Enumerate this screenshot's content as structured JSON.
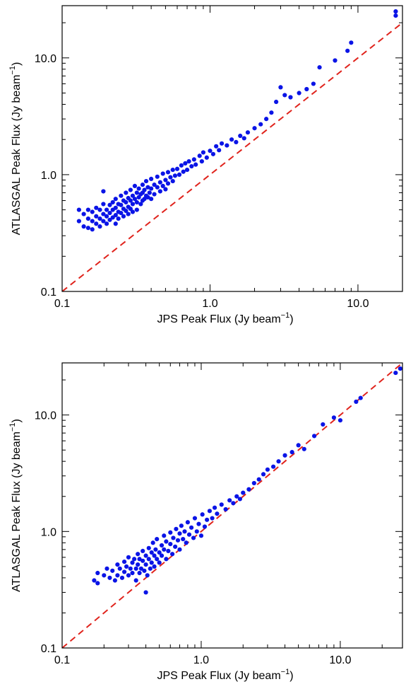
{
  "chart_data": [
    {
      "type": "scatter",
      "panel": "top",
      "xlabel": "JPS Peak Flux (Jy beam",
      "ylabel": "ATLASGAL Peak Flux (Jy beam",
      "unit_exponent": "−1",
      "label_close": ")",
      "xscale": "log",
      "yscale": "log",
      "xlim": [
        0.1,
        20
      ],
      "ylim": [
        0.1,
        28
      ],
      "xticks": [
        "0.1",
        "1.0",
        "10.0"
      ],
      "yticks": [
        "0.1",
        "1.0",
        "10.0"
      ],
      "reference_line": "y = x",
      "colors": {
        "points": "#0a14e6",
        "reference": "#e0231c"
      },
      "points": [
        [
          0.13,
          0.5
        ],
        [
          0.13,
          0.4
        ],
        [
          0.14,
          0.46
        ],
        [
          0.14,
          0.36
        ],
        [
          0.15,
          0.5
        ],
        [
          0.15,
          0.42
        ],
        [
          0.15,
          0.35
        ],
        [
          0.16,
          0.48
        ],
        [
          0.16,
          0.4
        ],
        [
          0.16,
          0.34
        ],
        [
          0.17,
          0.52
        ],
        [
          0.17,
          0.44
        ],
        [
          0.17,
          0.38
        ],
        [
          0.18,
          0.5
        ],
        [
          0.18,
          0.42
        ],
        [
          0.18,
          0.36
        ],
        [
          0.19,
          0.56
        ],
        [
          0.19,
          0.46
        ],
        [
          0.19,
          0.4
        ],
        [
          0.19,
          0.72
        ],
        [
          0.2,
          0.5
        ],
        [
          0.2,
          0.44
        ],
        [
          0.2,
          0.38
        ],
        [
          0.21,
          0.55
        ],
        [
          0.21,
          0.47
        ],
        [
          0.21,
          0.41
        ],
        [
          0.22,
          0.58
        ],
        [
          0.22,
          0.5
        ],
        [
          0.22,
          0.43
        ],
        [
          0.23,
          0.62
        ],
        [
          0.23,
          0.52
        ],
        [
          0.23,
          0.45
        ],
        [
          0.23,
          0.38
        ],
        [
          0.24,
          0.56
        ],
        [
          0.24,
          0.48
        ],
        [
          0.24,
          0.42
        ],
        [
          0.25,
          0.66
        ],
        [
          0.25,
          0.55
        ],
        [
          0.25,
          0.47
        ],
        [
          0.26,
          0.6
        ],
        [
          0.26,
          0.51
        ],
        [
          0.26,
          0.44
        ],
        [
          0.27,
          0.7
        ],
        [
          0.27,
          0.58
        ],
        [
          0.27,
          0.49
        ],
        [
          0.28,
          0.63
        ],
        [
          0.28,
          0.53
        ],
        [
          0.28,
          0.46
        ],
        [
          0.29,
          0.74
        ],
        [
          0.29,
          0.6
        ],
        [
          0.29,
          0.51
        ],
        [
          0.3,
          0.66
        ],
        [
          0.3,
          0.56
        ],
        [
          0.3,
          0.48
        ],
        [
          0.31,
          0.8
        ],
        [
          0.31,
          0.62
        ],
        [
          0.32,
          0.7
        ],
        [
          0.32,
          0.58
        ],
        [
          0.32,
          0.5
        ],
        [
          0.33,
          0.76
        ],
        [
          0.33,
          0.64
        ],
        [
          0.34,
          0.68
        ],
        [
          0.34,
          0.56
        ],
        [
          0.35,
          0.82
        ],
        [
          0.35,
          0.7
        ],
        [
          0.35,
          0.6
        ],
        [
          0.36,
          0.74
        ],
        [
          0.36,
          0.62
        ],
        [
          0.37,
          0.88
        ],
        [
          0.37,
          0.66
        ],
        [
          0.38,
          0.78
        ],
        [
          0.38,
          0.64
        ],
        [
          0.39,
          0.7
        ],
        [
          0.4,
          0.92
        ],
        [
          0.4,
          0.76
        ],
        [
          0.4,
          0.62
        ],
        [
          0.42,
          0.82
        ],
        [
          0.42,
          0.68
        ],
        [
          0.44,
          0.96
        ],
        [
          0.44,
          0.78
        ],
        [
          0.46,
          0.86
        ],
        [
          0.46,
          0.72
        ],
        [
          0.48,
          1.02
        ],
        [
          0.48,
          0.8
        ],
        [
          0.5,
          0.9
        ],
        [
          0.5,
          0.75
        ],
        [
          0.52,
          1.05
        ],
        [
          0.52,
          0.84
        ],
        [
          0.54,
          0.95
        ],
        [
          0.56,
          1.1
        ],
        [
          0.56,
          0.88
        ],
        [
          0.58,
          0.98
        ],
        [
          0.6,
          1.12
        ],
        [
          0.62,
          1.0
        ],
        [
          0.64,
          1.2
        ],
        [
          0.66,
          1.06
        ],
        [
          0.68,
          1.25
        ],
        [
          0.7,
          1.1
        ],
        [
          0.72,
          1.3
        ],
        [
          0.75,
          1.18
        ],
        [
          0.78,
          1.35
        ],
        [
          0.8,
          1.22
        ],
        [
          0.85,
          1.45
        ],
        [
          0.88,
          1.3
        ],
        [
          0.9,
          1.55
        ],
        [
          0.95,
          1.4
        ],
        [
          1.0,
          1.6
        ],
        [
          1.05,
          1.5
        ],
        [
          1.1,
          1.75
        ],
        [
          1.15,
          1.62
        ],
        [
          1.2,
          1.85
        ],
        [
          1.3,
          1.78
        ],
        [
          1.4,
          2.0
        ],
        [
          1.5,
          1.9
        ],
        [
          1.6,
          2.15
        ],
        [
          1.7,
          2.05
        ],
        [
          1.8,
          2.3
        ],
        [
          2.0,
          2.5
        ],
        [
          2.2,
          2.7
        ],
        [
          2.4,
          3.0
        ],
        [
          2.6,
          3.4
        ],
        [
          2.8,
          4.2
        ],
        [
          3.0,
          5.6
        ],
        [
          3.2,
          4.8
        ],
        [
          3.5,
          4.6
        ],
        [
          4.0,
          5.0
        ],
        [
          4.5,
          5.4
        ],
        [
          5.0,
          6.0
        ],
        [
          5.5,
          8.3
        ],
        [
          7.0,
          9.5
        ],
        [
          8.5,
          11.5
        ],
        [
          9.0,
          13.5
        ],
        [
          18.0,
          23.0
        ],
        [
          18.0,
          25.0
        ]
      ]
    },
    {
      "type": "scatter",
      "panel": "bottom",
      "xlabel": "JPS Peak Flux (Jy beam",
      "ylabel": "ATLASGAL Peak Flux (Jy beam",
      "unit_exponent": "−1",
      "label_close": ")",
      "xscale": "log",
      "yscale": "log",
      "xlim": [
        0.1,
        28
      ],
      "ylim": [
        0.1,
        28
      ],
      "xticks": [
        "0.1",
        "1.0",
        "10.0"
      ],
      "yticks": [
        "0.1",
        "1.0",
        "10.0"
      ],
      "reference_line": "y = x",
      "colors": {
        "points": "#0a14e6",
        "reference": "#e0231c"
      },
      "points": [
        [
          0.17,
          0.38
        ],
        [
          0.18,
          0.44
        ],
        [
          0.18,
          0.36
        ],
        [
          0.2,
          0.42
        ],
        [
          0.21,
          0.48
        ],
        [
          0.22,
          0.4
        ],
        [
          0.23,
          0.46
        ],
        [
          0.24,
          0.38
        ],
        [
          0.25,
          0.52
        ],
        [
          0.25,
          0.42
        ],
        [
          0.26,
          0.48
        ],
        [
          0.27,
          0.4
        ],
        [
          0.28,
          0.55
        ],
        [
          0.28,
          0.45
        ],
        [
          0.29,
          0.5
        ],
        [
          0.3,
          0.42
        ],
        [
          0.3,
          0.6
        ],
        [
          0.31,
          0.48
        ],
        [
          0.32,
          0.54
        ],
        [
          0.32,
          0.44
        ],
        [
          0.33,
          0.58
        ],
        [
          0.34,
          0.48
        ],
        [
          0.34,
          0.38
        ],
        [
          0.35,
          0.64
        ],
        [
          0.35,
          0.52
        ],
        [
          0.36,
          0.44
        ],
        [
          0.36,
          0.58
        ],
        [
          0.37,
          0.48
        ],
        [
          0.38,
          0.68
        ],
        [
          0.38,
          0.56
        ],
        [
          0.39,
          0.46
        ],
        [
          0.4,
          0.62
        ],
        [
          0.4,
          0.52
        ],
        [
          0.4,
          0.3
        ],
        [
          0.41,
          0.42
        ],
        [
          0.42,
          0.72
        ],
        [
          0.42,
          0.58
        ],
        [
          0.43,
          0.48
        ],
        [
          0.44,
          0.66
        ],
        [
          0.44,
          0.54
        ],
        [
          0.45,
          0.8
        ],
        [
          0.46,
          0.62
        ],
        [
          0.46,
          0.5
        ],
        [
          0.47,
          0.7
        ],
        [
          0.48,
          0.58
        ],
        [
          0.48,
          0.86
        ],
        [
          0.5,
          0.66
        ],
        [
          0.5,
          0.54
        ],
        [
          0.52,
          0.76
        ],
        [
          0.52,
          0.62
        ],
        [
          0.54,
          0.92
        ],
        [
          0.54,
          0.7
        ],
        [
          0.56,
          0.58
        ],
        [
          0.56,
          0.82
        ],
        [
          0.58,
          0.68
        ],
        [
          0.6,
          0.98
        ],
        [
          0.6,
          0.78
        ],
        [
          0.62,
          0.64
        ],
        [
          0.63,
          0.88
        ],
        [
          0.65,
          0.74
        ],
        [
          0.66,
          1.05
        ],
        [
          0.68,
          0.84
        ],
        [
          0.7,
          0.7
        ],
        [
          0.7,
          0.96
        ],
        [
          0.72,
          1.12
        ],
        [
          0.74,
          0.86
        ],
        [
          0.76,
          1.0
        ],
        [
          0.78,
          0.8
        ],
        [
          0.8,
          1.2
        ],
        [
          0.82,
          0.94
        ],
        [
          0.85,
          1.08
        ],
        [
          0.88,
          0.88
        ],
        [
          0.9,
          1.3
        ],
        [
          0.93,
          1.0
        ],
        [
          0.96,
          1.16
        ],
        [
          1.0,
          0.92
        ],
        [
          1.02,
          1.4
        ],
        [
          1.06,
          1.1
        ],
        [
          1.1,
          1.26
        ],
        [
          1.15,
          1.5
        ],
        [
          1.2,
          1.3
        ],
        [
          1.25,
          1.6
        ],
        [
          1.3,
          1.42
        ],
        [
          1.4,
          1.7
        ],
        [
          1.5,
          1.55
        ],
        [
          1.6,
          1.85
        ],
        [
          1.7,
          1.75
        ],
        [
          1.8,
          2.0
        ],
        [
          1.9,
          1.9
        ],
        [
          2.0,
          2.15
        ],
        [
          2.2,
          2.3
        ],
        [
          2.4,
          2.6
        ],
        [
          2.6,
          2.8
        ],
        [
          2.8,
          3.1
        ],
        [
          3.0,
          3.4
        ],
        [
          3.3,
          3.6
        ],
        [
          3.6,
          4.0
        ],
        [
          4.0,
          4.5
        ],
        [
          4.5,
          4.8
        ],
        [
          5.0,
          5.5
        ],
        [
          5.5,
          5.1
        ],
        [
          6.5,
          6.6
        ],
        [
          7.5,
          8.3
        ],
        [
          9.0,
          9.5
        ],
        [
          10.0,
          9.0
        ],
        [
          13.0,
          13.0
        ],
        [
          14.0,
          14.0
        ],
        [
          25.0,
          23.0
        ],
        [
          27.0,
          25.0
        ]
      ]
    }
  ]
}
